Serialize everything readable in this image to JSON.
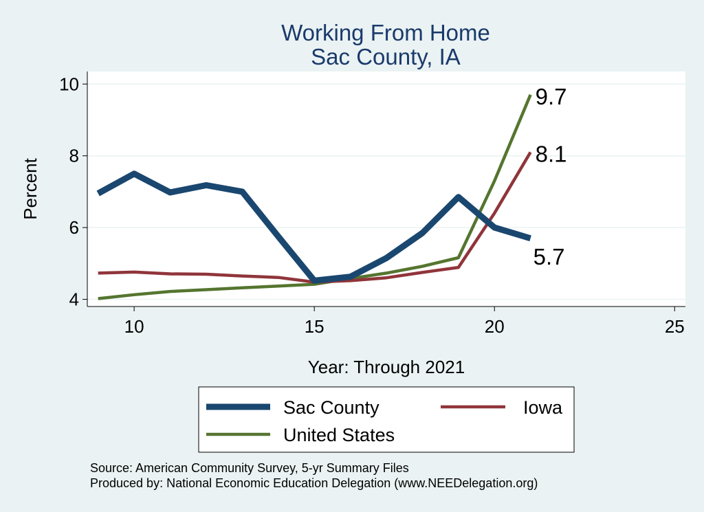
{
  "chart_data": {
    "type": "line",
    "title": "Working From Home",
    "subtitle": "Sac County, IA",
    "xlabel": "Year: Through 2021",
    "ylabel": "Percent",
    "xlim": [
      8.7,
      25.3
    ],
    "ylim": [
      3.8,
      10.35
    ],
    "xticks": [
      10,
      15,
      20,
      25
    ],
    "yticks": [
      4,
      6,
      8,
      10
    ],
    "grid": true,
    "x": [
      9,
      10,
      11,
      12,
      13,
      14,
      15,
      16,
      17,
      18,
      19,
      20,
      21
    ],
    "series": [
      {
        "name": "Sac County",
        "color": "#1a476f",
        "values": [
          6.95,
          7.5,
          6.98,
          7.18,
          7.0,
          5.75,
          4.52,
          4.63,
          5.15,
          5.85,
          6.85,
          6.0,
          5.7
        ],
        "end_label": "5.7"
      },
      {
        "name": "Iowa",
        "color": "#90353b",
        "values": [
          4.73,
          4.76,
          4.71,
          4.7,
          4.65,
          4.61,
          4.48,
          4.52,
          4.6,
          4.75,
          4.89,
          6.4,
          8.1
        ],
        "end_label": "8.1"
      },
      {
        "name": "United States",
        "color": "#55752f",
        "values": [
          4.02,
          4.13,
          4.22,
          4.27,
          4.32,
          4.37,
          4.42,
          4.58,
          4.73,
          4.92,
          5.16,
          7.3,
          9.7
        ],
        "end_label": "9.7"
      }
    ],
    "legend": {
      "position": "bottom",
      "items": [
        "Sac County",
        "Iowa",
        "United States"
      ]
    },
    "notes": [
      "Source: American Community Survey, 5-yr Summary Files",
      "Produced by: National Economic Education Delegation (www.NEEDelegation.org)"
    ]
  }
}
